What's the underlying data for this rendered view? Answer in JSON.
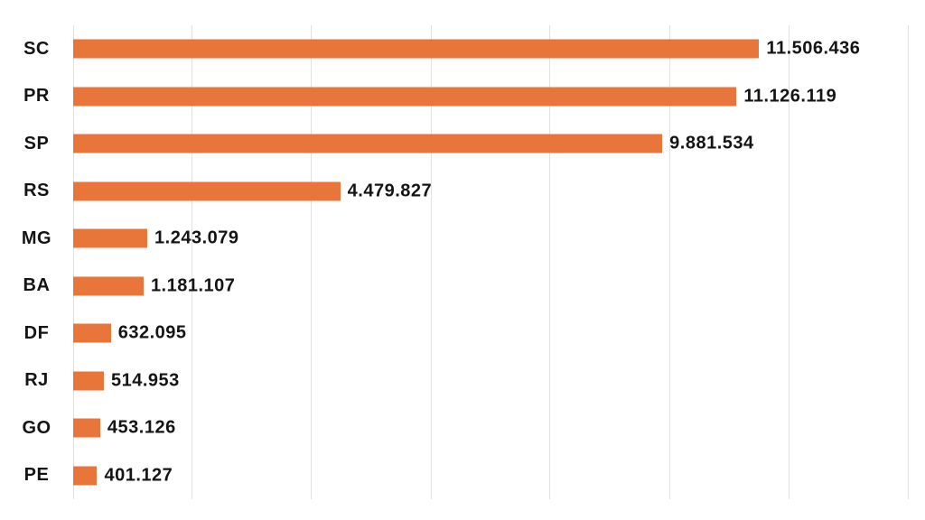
{
  "chart_data": {
    "type": "bar",
    "orientation": "horizontal",
    "title": "",
    "xlabel": "",
    "ylabel": "",
    "categories": [
      "SC",
      "PR",
      "SP",
      "RS",
      "MG",
      "BA",
      "DF",
      "RJ",
      "GO",
      "PE"
    ],
    "values": [
      11506436,
      11126119,
      9881534,
      4479827,
      1243079,
      1181107,
      632095,
      514953,
      453126,
      401127
    ],
    "value_labels": [
      "11.506.436",
      "11.126.119",
      "9.881.534",
      "4.479.827",
      "1.243.079",
      "1.181.107",
      "632.095",
      "514.953",
      "453.126",
      "401.127"
    ],
    "xlim": [
      0,
      14000000
    ],
    "grid_step": 2000000,
    "grid": true,
    "legend": false,
    "bar_color": "#E8763B",
    "grid_color": "#E1E1E1",
    "label_color": "#141414",
    "background": "#FFFFFF"
  }
}
